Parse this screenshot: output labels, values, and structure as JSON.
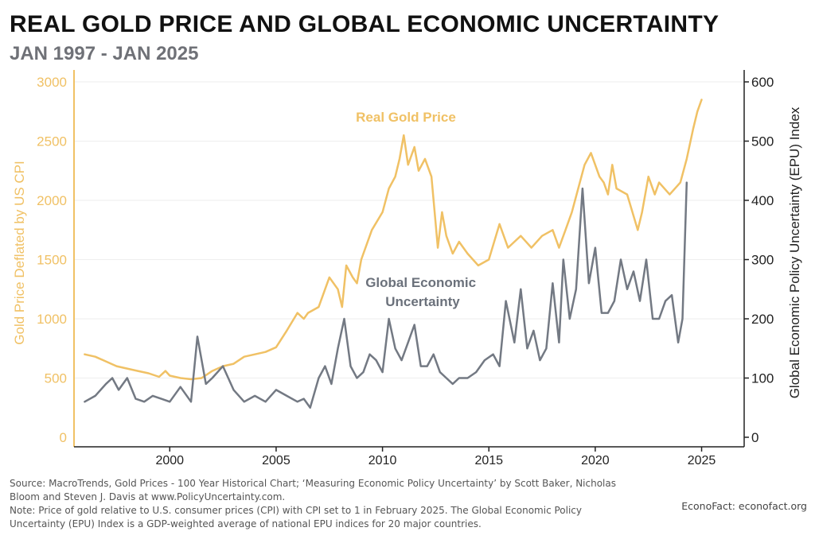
{
  "header": {
    "title": "REAL GOLD PRICE AND GLOBAL ECONOMIC UNCERTAINTY",
    "subtitle": "JAN 1997 - JAN 2025"
  },
  "footer": {
    "source": "Source: MacroTrends, Gold Prices - 100 Year Historical Chart; ‘Measuring Economic Policy Uncertainty’ by Scott Baker, Nicholas Bloom and Steven J. Davis at www.PolicyUncertainty.com.",
    "note": "Note: Price of gold relative to U.S. consumer prices (CPI) with CPI set to 1 in February 2025. The Global Economic Policy Uncertainty (EPU) Index is a GDP-weighted average of national EPU indices for 20 major countries.",
    "credit": "EconoFact:   econofact.org"
  },
  "colors": {
    "gold": "#f0c165",
    "epu": "#737983",
    "axis": "#222222",
    "grid": "#eeeeee"
  },
  "chart_data": {
    "type": "line",
    "xlim": [
      1995.5,
      2027.0
    ],
    "x_ticks": [
      "2000",
      "2005",
      "2010",
      "2015",
      "2020",
      "2025"
    ],
    "ylim_left": [
      0,
      3000
    ],
    "ylim_right": [
      0,
      600
    ],
    "left_ticks": [
      "0",
      "500",
      "1000",
      "1500",
      "2000",
      "2500",
      "3000"
    ],
    "right_ticks": [
      "0",
      "100",
      "200",
      "300",
      "400",
      "500",
      "600"
    ],
    "ylabel_left": "Gold Price Deflated by US CPI",
    "ylabel_right": "Global Economic Policy Uncertainty (EPU) Index",
    "grid": true,
    "series": [
      {
        "name": "Real Gold Price",
        "axis": "left",
        "x": [
          1996.0,
          1996.5,
          1997.0,
          1997.5,
          1998.0,
          1998.5,
          1999.0,
          1999.5,
          1999.8,
          2000.0,
          2000.5,
          2001.0,
          2001.5,
          2002.0,
          2002.5,
          2003.0,
          2003.5,
          2004.0,
          2004.5,
          2005.0,
          2005.5,
          2006.0,
          2006.3,
          2006.5,
          2007.0,
          2007.5,
          2007.9,
          2008.1,
          2008.3,
          2008.6,
          2008.8,
          2009.0,
          2009.5,
          2010.0,
          2010.3,
          2010.6,
          2010.8,
          2011.0,
          2011.2,
          2011.5,
          2011.7,
          2012.0,
          2012.3,
          2012.6,
          2012.8,
          2013.0,
          2013.3,
          2013.6,
          2014.0,
          2014.5,
          2015.0,
          2015.5,
          2015.9,
          2016.2,
          2016.5,
          2017.0,
          2017.5,
          2018.0,
          2018.3,
          2018.6,
          2018.9,
          2019.2,
          2019.5,
          2019.8,
          2020.2,
          2020.4,
          2020.6,
          2020.8,
          2021.0,
          2021.5,
          2022.0,
          2022.2,
          2022.5,
          2022.8,
          2023.0,
          2023.5,
          2024.0,
          2024.3,
          2024.6,
          2024.8,
          2025.0
        ],
        "values": [
          700,
          680,
          640,
          600,
          580,
          560,
          540,
          510,
          560,
          520,
          500,
          490,
          500,
          560,
          600,
          620,
          680,
          700,
          720,
          760,
          900,
          1050,
          1000,
          1050,
          1100,
          1350,
          1250,
          1100,
          1450,
          1350,
          1300,
          1500,
          1750,
          1900,
          2100,
          2200,
          2350,
          2550,
          2300,
          2450,
          2250,
          2350,
          2200,
          1600,
          1900,
          1700,
          1550,
          1650,
          1550,
          1450,
          1500,
          1800,
          1600,
          1650,
          1700,
          1600,
          1700,
          1750,
          1600,
          1750,
          1900,
          2100,
          2300,
          2400,
          2200,
          2150,
          2050,
          2300,
          2100,
          2050,
          1750,
          1900,
          2200,
          2050,
          2150,
          2050,
          2150,
          2350,
          2600,
          2750,
          2850
        ]
      },
      {
        "name": "Global Economic Uncertainty",
        "axis": "right",
        "x": [
          1996.0,
          1996.5,
          1997.0,
          1997.3,
          1997.6,
          1998.0,
          1998.4,
          1998.8,
          1999.2,
          1999.6,
          2000.0,
          2000.5,
          2001.0,
          2001.3,
          2001.7,
          2002.0,
          2002.5,
          2003.0,
          2003.5,
          2004.0,
          2004.5,
          2005.0,
          2005.5,
          2006.0,
          2006.3,
          2006.6,
          2007.0,
          2007.3,
          2007.6,
          2007.9,
          2008.2,
          2008.5,
          2008.8,
          2009.1,
          2009.4,
          2009.7,
          2010.0,
          2010.3,
          2010.6,
          2010.9,
          2011.2,
          2011.5,
          2011.8,
          2012.1,
          2012.4,
          2012.7,
          2013.0,
          2013.3,
          2013.6,
          2014.0,
          2014.4,
          2014.8,
          2015.2,
          2015.5,
          2015.8,
          2016.2,
          2016.5,
          2016.8,
          2017.1,
          2017.4,
          2017.7,
          2018.0,
          2018.3,
          2018.5,
          2018.8,
          2019.1,
          2019.4,
          2019.7,
          2020.0,
          2020.3,
          2020.6,
          2020.9,
          2021.2,
          2021.5,
          2021.8,
          2022.1,
          2022.4,
          2022.7,
          2023.0,
          2023.3,
          2023.6,
          2023.9,
          2024.1,
          2024.3
        ],
        "values": [
          60,
          70,
          90,
          100,
          80,
          100,
          65,
          60,
          70,
          65,
          60,
          85,
          60,
          170,
          90,
          100,
          120,
          80,
          60,
          70,
          60,
          80,
          70,
          60,
          65,
          50,
          100,
          120,
          90,
          150,
          200,
          120,
          100,
          110,
          140,
          130,
          110,
          200,
          150,
          130,
          160,
          190,
          120,
          120,
          140,
          110,
          100,
          90,
          100,
          100,
          110,
          130,
          140,
          120,
          230,
          160,
          250,
          150,
          180,
          130,
          150,
          260,
          160,
          300,
          200,
          250,
          420,
          260,
          320,
          210,
          210,
          230,
          300,
          250,
          280,
          230,
          300,
          200,
          200,
          230,
          240,
          160,
          200,
          430
        ]
      }
    ],
    "annotations": [
      "Real Gold Price",
      "Global Economic\nUncertainty"
    ]
  }
}
